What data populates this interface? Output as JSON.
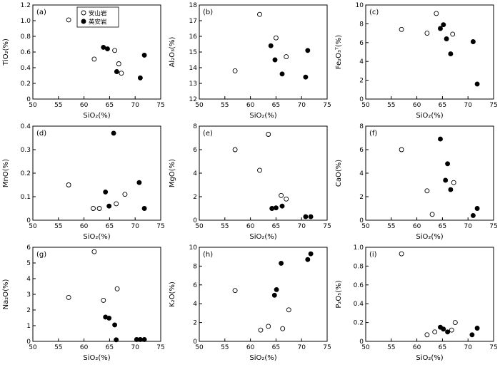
{
  "figure": {
    "background": "#ffffff",
    "axis_color": "#000000",
    "marker_color": "#000000",
    "legend": [
      {
        "label": "安山岩",
        "marker": "open-circle"
      },
      {
        "label": "英安岩",
        "marker": "filled-circle"
      }
    ]
  },
  "chart_data": [
    {
      "type": "scatter",
      "panel": "(a)",
      "xlabel": "SiO₂(%)",
      "ylabel": "TiO₂(%)",
      "xlim": [
        50,
        75
      ],
      "ylim": [
        0,
        1.2
      ],
      "xticks": [
        "50",
        "55",
        "60",
        "65",
        "70",
        "75"
      ],
      "yticks": [
        "0",
        "0.2",
        "0.4",
        "0.6",
        "0.8",
        "1.0",
        "1.2"
      ],
      "show_legend": true,
      "series": [
        {
          "name": "安山岩",
          "marker": "open",
          "points": [
            [
              57,
              1.01
            ],
            [
              62,
              0.51
            ],
            [
              66,
              0.62
            ],
            [
              66.8,
              0.45
            ],
            [
              67.3,
              0.33
            ]
          ]
        },
        {
          "name": "英安岩",
          "marker": "filled",
          "points": [
            [
              63.8,
              0.66
            ],
            [
              64.6,
              0.64
            ],
            [
              66.4,
              0.35
            ],
            [
              71,
              0.27
            ],
            [
              71.8,
              0.56
            ]
          ]
        }
      ]
    },
    {
      "type": "scatter",
      "panel": "(b)",
      "xlabel": "SiO₂(%)",
      "ylabel": "Al₂O₃(%)",
      "xlim": [
        50,
        75
      ],
      "ylim": [
        12,
        18
      ],
      "xticks": [
        "50",
        "55",
        "60",
        "65",
        "70",
        "75"
      ],
      "yticks": [
        "12",
        "13",
        "14",
        "15",
        "16",
        "17",
        "18"
      ],
      "show_legend": false,
      "series": [
        {
          "name": "安山岩",
          "marker": "open",
          "points": [
            [
              57,
              13.8
            ],
            [
              61.8,
              17.4
            ],
            [
              65,
              15.9
            ],
            [
              67,
              14.7
            ]
          ]
        },
        {
          "name": "英安岩",
          "marker": "filled",
          "points": [
            [
              64,
              15.4
            ],
            [
              64.8,
              14.5
            ],
            [
              66.2,
              13.6
            ],
            [
              70.8,
              13.4
            ],
            [
              71.2,
              15.1
            ]
          ]
        }
      ]
    },
    {
      "type": "scatter",
      "panel": "(c)",
      "xlabel": "SiO₂(%)",
      "ylabel": "Fe₂O₃ᵀ(%)",
      "xlim": [
        50,
        75
      ],
      "ylim": [
        0,
        10
      ],
      "xticks": [
        "50",
        "55",
        "60",
        "65",
        "70",
        "75"
      ],
      "yticks": [
        "0",
        "2",
        "4",
        "6",
        "8",
        "10"
      ],
      "show_legend": false,
      "series": [
        {
          "name": "安山岩",
          "marker": "open",
          "points": [
            [
              57,
              7.4
            ],
            [
              62,
              7.0
            ],
            [
              63.8,
              9.1
            ],
            [
              67,
              6.9
            ]
          ]
        },
        {
          "name": "英安岩",
          "marker": "filled",
          "points": [
            [
              64.6,
              7.5
            ],
            [
              65.2,
              7.9
            ],
            [
              65.8,
              6.4
            ],
            [
              66.6,
              4.8
            ],
            [
              71,
              6.1
            ],
            [
              71.8,
              1.6
            ]
          ]
        }
      ]
    },
    {
      "type": "scatter",
      "panel": "(d)",
      "xlabel": "SiO₂(%)",
      "ylabel": "MnO(%)",
      "xlim": [
        50,
        75
      ],
      "ylim": [
        0,
        0.4
      ],
      "xticks": [
        "50",
        "55",
        "60",
        "65",
        "70",
        "75"
      ],
      "yticks": [
        "0",
        "0.1",
        "0.2",
        "0.3",
        "0.4"
      ],
      "show_legend": false,
      "series": [
        {
          "name": "安山岩",
          "marker": "open",
          "points": [
            [
              57,
              0.15
            ],
            [
              61.8,
              0.05
            ],
            [
              63,
              0.05
            ],
            [
              66.3,
              0.07
            ],
            [
              68,
              0.11
            ]
          ]
        },
        {
          "name": "英安岩",
          "marker": "filled",
          "points": [
            [
              64.2,
              0.12
            ],
            [
              64.9,
              0.06
            ],
            [
              65.8,
              0.37
            ],
            [
              70.8,
              0.16
            ],
            [
              71.8,
              0.05
            ]
          ]
        }
      ]
    },
    {
      "type": "scatter",
      "panel": "(e)",
      "xlabel": "SiO₂(%)",
      "ylabel": "MgO(%)",
      "xlim": [
        50,
        75
      ],
      "ylim": [
        0,
        8
      ],
      "xticks": [
        "50",
        "55",
        "60",
        "65",
        "70",
        "75"
      ],
      "yticks": [
        "0",
        "2",
        "4",
        "6",
        "8"
      ],
      "show_legend": false,
      "series": [
        {
          "name": "安山岩",
          "marker": "open",
          "points": [
            [
              57,
              6.0
            ],
            [
              61.8,
              4.25
            ],
            [
              63.5,
              7.3
            ],
            [
              66,
              2.1
            ],
            [
              67,
              1.8
            ]
          ]
        },
        {
          "name": "英安岩",
          "marker": "filled",
          "points": [
            [
              64.2,
              1.0
            ],
            [
              65,
              1.05
            ],
            [
              66.2,
              1.2
            ],
            [
              70.8,
              0.3
            ],
            [
              71.8,
              0.3
            ]
          ]
        }
      ]
    },
    {
      "type": "scatter",
      "panel": "(f)",
      "xlabel": "SiO₂(%)",
      "ylabel": "CaO(%)",
      "xlim": [
        50,
        75
      ],
      "ylim": [
        0,
        8
      ],
      "xticks": [
        "50",
        "55",
        "60",
        "65",
        "70",
        "75"
      ],
      "yticks": [
        "0",
        "2",
        "4",
        "6",
        "8"
      ],
      "show_legend": false,
      "series": [
        {
          "name": "安山岩",
          "marker": "open",
          "points": [
            [
              57,
              6.0
            ],
            [
              62,
              2.5
            ],
            [
              63,
              0.5
            ],
            [
              67.2,
              3.2
            ]
          ]
        },
        {
          "name": "英安岩",
          "marker": "filled",
          "points": [
            [
              64.6,
              6.9
            ],
            [
              65.6,
              3.4
            ],
            [
              66,
              4.8
            ],
            [
              66.6,
              2.6
            ],
            [
              71,
              0.4
            ],
            [
              71.8,
              1.0
            ]
          ]
        }
      ]
    },
    {
      "type": "scatter",
      "panel": "(g)",
      "xlabel": "SiO₂(%)",
      "ylabel": "Na₂O(%)",
      "xlim": [
        50,
        75
      ],
      "ylim": [
        0,
        6
      ],
      "xticks": [
        "50",
        "55",
        "60",
        "65",
        "70",
        "75"
      ],
      "yticks": [
        "0",
        "1",
        "2",
        "3",
        "4",
        "5",
        "6"
      ],
      "show_legend": false,
      "series": [
        {
          "name": "安山岩",
          "marker": "open",
          "points": [
            [
              57,
              2.8
            ],
            [
              62,
              5.72
            ],
            [
              63.8,
              2.62
            ],
            [
              66.5,
              3.35
            ]
          ]
        },
        {
          "name": "英安岩",
          "marker": "filled",
          "points": [
            [
              64.2,
              1.55
            ],
            [
              64.9,
              1.48
            ],
            [
              66,
              1.05
            ],
            [
              66.3,
              0.1
            ],
            [
              70.3,
              0.12
            ],
            [
              71,
              0.12
            ],
            [
              71.8,
              0.12
            ]
          ]
        }
      ]
    },
    {
      "type": "scatter",
      "panel": "(h)",
      "xlabel": "SiO₂(%)",
      "ylabel": "K₂O(%)",
      "xlim": [
        50,
        75
      ],
      "ylim": [
        0,
        10
      ],
      "xticks": [
        "50",
        "55",
        "60",
        "65",
        "70",
        "75"
      ],
      "yticks": [
        "0",
        "2",
        "4",
        "6",
        "8",
        "10"
      ],
      "show_legend": false,
      "series": [
        {
          "name": "安山岩",
          "marker": "open",
          "points": [
            [
              57,
              5.4
            ],
            [
              62,
              1.2
            ],
            [
              63.5,
              1.6
            ],
            [
              66.3,
              1.35
            ],
            [
              67.5,
              3.35
            ]
          ]
        },
        {
          "name": "英安岩",
          "marker": "filled",
          "points": [
            [
              64.7,
              4.9
            ],
            [
              65.1,
              5.5
            ],
            [
              66,
              8.3
            ],
            [
              71.2,
              8.7
            ],
            [
              71.8,
              9.3
            ]
          ]
        }
      ]
    },
    {
      "type": "scatter",
      "panel": "(i)",
      "xlabel": "SiO₂(%)",
      "ylabel": "P₂O₅(%)",
      "xlim": [
        50,
        75
      ],
      "ylim": [
        0,
        1.0
      ],
      "xticks": [
        "50",
        "55",
        "60",
        "65",
        "70",
        "75"
      ],
      "yticks": [
        "0",
        "0.2",
        "0.4",
        "0.6",
        "0.8",
        "1.0"
      ],
      "show_legend": false,
      "series": [
        {
          "name": "安山岩",
          "marker": "open",
          "points": [
            [
              57,
              0.93
            ],
            [
              62,
              0.07
            ],
            [
              63.5,
              0.1
            ],
            [
              66.8,
              0.12
            ],
            [
              67.5,
              0.2
            ]
          ]
        },
        {
          "name": "英安岩",
          "marker": "filled",
          "points": [
            [
              64.6,
              0.15
            ],
            [
              65.2,
              0.13
            ],
            [
              66,
              0.1
            ],
            [
              70.8,
              0.07
            ],
            [
              71.8,
              0.14
            ]
          ]
        }
      ]
    }
  ]
}
